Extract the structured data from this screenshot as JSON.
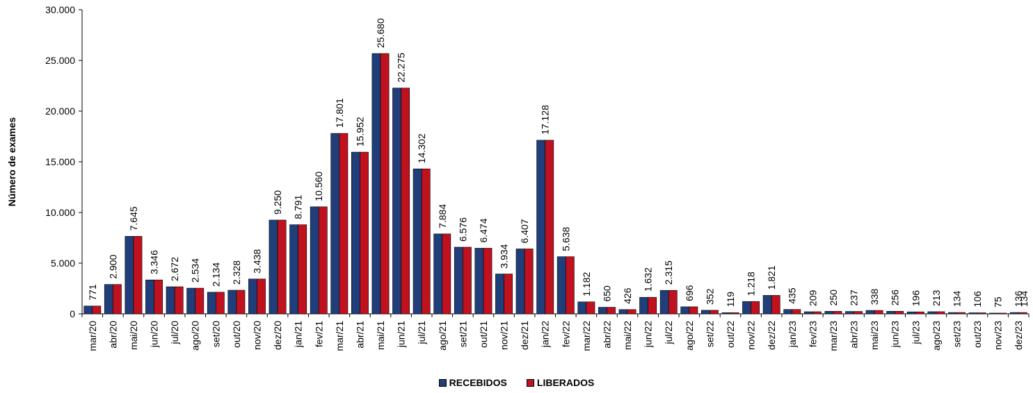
{
  "chart_data": {
    "type": "bar",
    "ylabel": "Número de exames",
    "xlabel": "",
    "ylim": [
      0,
      30000
    ],
    "yticks": [
      "0",
      "5.000",
      "10.000",
      "15.000",
      "20.000",
      "25.000",
      "30.000"
    ],
    "ytick_values": [
      0,
      5000,
      10000,
      15000,
      20000,
      25000,
      30000
    ],
    "grid": false,
    "legend_position": "bottom",
    "categories": [
      "mar/20",
      "abr/20",
      "mai/20",
      "jun/20",
      "jul/20",
      "ago/20",
      "set/20",
      "out/20",
      "nov/20",
      "dez/20",
      "jan/21",
      "fev/21",
      "mar/21",
      "abr/21",
      "mai/21",
      "jun/21",
      "jul/21",
      "ago/21",
      "set/21",
      "out/21",
      "nov/21",
      "dez/21",
      "jan/22",
      "fev/22",
      "mar/22",
      "abr/22",
      "mai/22",
      "jun/22",
      "jul/22",
      "ago/22",
      "set/22",
      "out/22",
      "nov/22",
      "dez/22",
      "jan/23",
      "fev/23",
      "mar/23",
      "abr/23",
      "mai/23",
      "jun/23",
      "jul/23",
      "ago/23",
      "set/23",
      "out/23",
      "nov/23",
      "dez/23"
    ],
    "series": [
      {
        "name": "RECEBIDOS",
        "color": "#1f3e7a",
        "values": [
          771,
          2900,
          7645,
          3346,
          2672,
          2534,
          2134,
          2328,
          3438,
          9250,
          8791,
          10560,
          17801,
          15952,
          25680,
          22275,
          14302,
          7884,
          6576,
          6474,
          3934,
          6407,
          17128,
          5638,
          1182,
          650,
          426,
          1632,
          2315,
          696,
          352,
          119,
          1218,
          1821,
          435,
          209,
          250,
          237,
          338,
          256,
          196,
          213,
          134,
          106,
          75,
          136
        ]
      },
      {
        "name": "LIBERADOS",
        "color": "#c0111f",
        "values": [
          771,
          2900,
          7645,
          3346,
          2672,
          2534,
          2134,
          2328,
          3438,
          9250,
          8791,
          10560,
          17801,
          15952,
          25680,
          22275,
          14302,
          7884,
          6576,
          6474,
          3934,
          6407,
          17128,
          5638,
          1182,
          650,
          426,
          1632,
          2315,
          696,
          352,
          119,
          1218,
          1821,
          435,
          209,
          250,
          237,
          338,
          256,
          196,
          213,
          134,
          106,
          75,
          134
        ]
      }
    ],
    "data_labels": [
      "771",
      "2.900",
      "7.645",
      "3.346",
      "2.672",
      "2.534",
      "2.134",
      "2.328",
      "3.438",
      "9.250",
      "8.791",
      "10.560",
      "17.801",
      "15.952",
      "25.680",
      "22.275",
      "14.302",
      "7.884",
      "6.576",
      "6.474",
      "3.934",
      "6.407",
      "17.128",
      "5.638",
      "1.182",
      "650",
      "426",
      "1.632",
      "2.315",
      "696",
      "352",
      "119",
      "1.218",
      "1.821",
      "435",
      "209",
      "250",
      "237",
      "338",
      "256",
      "196",
      "213",
      "134",
      "106",
      "75",
      "136"
    ],
    "data_labels_extra": [
      "134"
    ]
  },
  "legend": {
    "items": [
      {
        "label": "RECEBIDOS",
        "color": "#1f3e7a"
      },
      {
        "label": "LIBERADOS",
        "color": "#c0111f"
      }
    ]
  }
}
